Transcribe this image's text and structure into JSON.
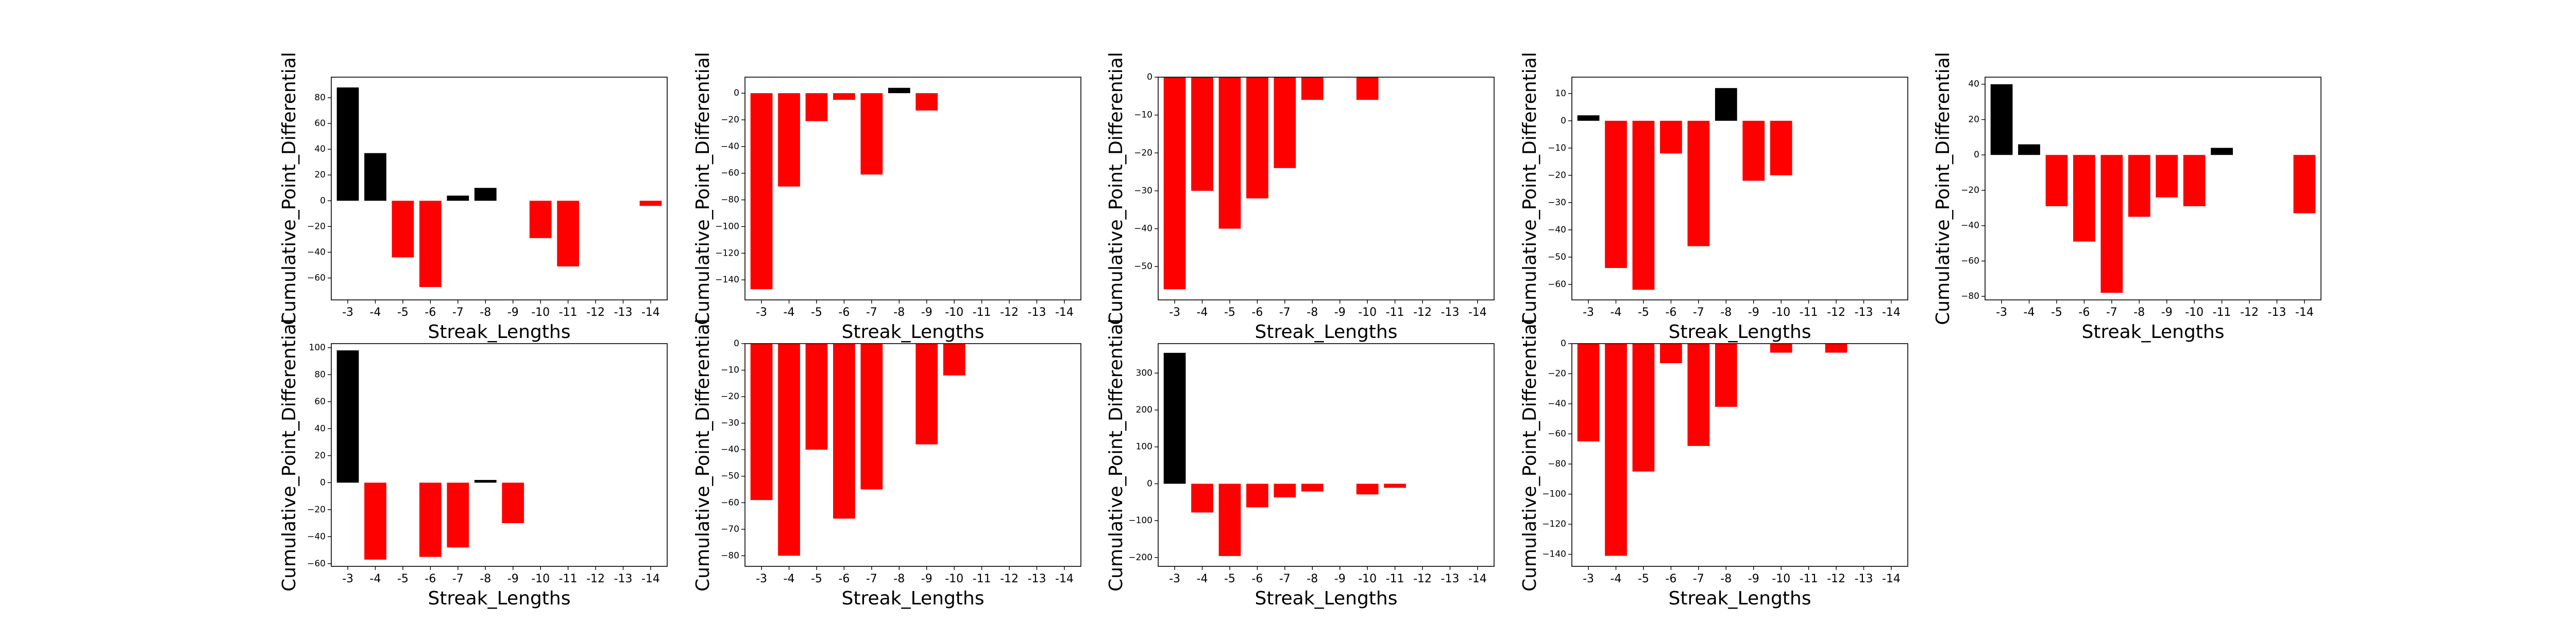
{
  "colors": {
    "positive": "#000000",
    "negative": "#ff0000"
  },
  "chart_data": [
    {
      "type": "bar",
      "xlabel": "Streak_Lengths",
      "ylabel": "Cumulative_Point_Differential",
      "categories": [
        "-3",
        "-4",
        "-5",
        "-6",
        "-7",
        "-8",
        "-9",
        "-10",
        "-11",
        "-12",
        "-13",
        "-14"
      ],
      "values": [
        88,
        37,
        -44,
        -67,
        4,
        10,
        0,
        -29,
        -51,
        0,
        0,
        -4
      ],
      "ylim": [
        -77,
        96
      ],
      "yticks": [
        -60,
        -40,
        -20,
        0,
        20,
        40,
        60,
        80
      ]
    },
    {
      "type": "bar",
      "xlabel": "Streak_Lengths",
      "ylabel": "Cumulative_Point_Differential",
      "categories": [
        "-3",
        "-4",
        "-5",
        "-6",
        "-7",
        "-8",
        "-9",
        "-10",
        "-11",
        "-12",
        "-13",
        "-14"
      ],
      "values": [
        -147,
        -70,
        -21,
        -5,
        -61,
        4,
        -13,
        0,
        0,
        0,
        0,
        0
      ],
      "ylim": [
        -155,
        12
      ],
      "yticks": [
        -140,
        -120,
        -100,
        -80,
        -60,
        -40,
        -20,
        0
      ]
    },
    {
      "type": "bar",
      "xlabel": "Streak_Lengths",
      "ylabel": "Cumulative_Point_Differential",
      "categories": [
        "-3",
        "-4",
        "-5",
        "-6",
        "-7",
        "-8",
        "-9",
        "-10",
        "-11",
        "-12",
        "-13",
        "-14"
      ],
      "values": [
        -56,
        -30,
        -40,
        -32,
        -24,
        -6,
        0,
        -6,
        0,
        0,
        0,
        0
      ],
      "ylim": [
        -58.8,
        0
      ],
      "yticks": [
        -50,
        -40,
        -30,
        -20,
        -10,
        0
      ]
    },
    {
      "type": "bar",
      "xlabel": "Streak_Lengths",
      "ylabel": "Cumulative_Point_Differential",
      "categories": [
        "-3",
        "-4",
        "-5",
        "-6",
        "-7",
        "-8",
        "-9",
        "-10",
        "-11",
        "-12",
        "-13",
        "-14"
      ],
      "values": [
        2,
        -54,
        -62,
        -12,
        -46,
        12,
        -22,
        -20,
        0,
        0,
        0,
        0
      ],
      "ylim": [
        -65.7,
        16
      ],
      "yticks": [
        -60,
        -50,
        -40,
        -30,
        -20,
        -10,
        0,
        10
      ]
    },
    {
      "type": "bar",
      "xlabel": "Streak_Lengths",
      "ylabel": "Cumulative_Point_Differential",
      "categories": [
        "-3",
        "-4",
        "-5",
        "-6",
        "-7",
        "-8",
        "-9",
        "-10",
        "-11",
        "-12",
        "-13",
        "-14"
      ],
      "values": [
        40,
        6,
        -29,
        -49,
        -78,
        -35,
        -24,
        -29,
        4,
        0,
        0,
        -33
      ],
      "ylim": [
        -82,
        44
      ],
      "yticks": [
        -80,
        -60,
        -40,
        -20,
        0,
        20,
        40
      ]
    },
    {
      "type": "bar",
      "xlabel": "Streak_Lengths",
      "ylabel": "Cumulative_Point_Differential",
      "categories": [
        "-3",
        "-4",
        "-5",
        "-6",
        "-7",
        "-8",
        "-9",
        "-10",
        "-11",
        "-12",
        "-13",
        "-14"
      ],
      "values": [
        98,
        -57,
        0,
        -55,
        -48,
        2,
        -30,
        0,
        0,
        0,
        0,
        0
      ],
      "ylim": [
        -62,
        103
      ],
      "yticks": [
        -60,
        -40,
        -20,
        0,
        20,
        40,
        60,
        80,
        100
      ]
    },
    {
      "type": "bar",
      "xlabel": "Streak_Lengths",
      "ylabel": "Cumulative_Point_Differential",
      "categories": [
        "-3",
        "-4",
        "-5",
        "-6",
        "-7",
        "-8",
        "-9",
        "-10",
        "-11",
        "-12",
        "-13",
        "-14"
      ],
      "values": [
        -59,
        -80,
        -40,
        -66,
        -55,
        0,
        -38,
        -12,
        0,
        0,
        0,
        0
      ],
      "ylim": [
        -84,
        0
      ],
      "yticks": [
        -80,
        -70,
        -60,
        -50,
        -40,
        -30,
        -20,
        -10,
        0
      ]
    },
    {
      "type": "bar",
      "xlabel": "Streak_Lengths",
      "ylabel": "Cumulative_Point_Differential",
      "categories": [
        "-3",
        "-4",
        "-5",
        "-6",
        "-7",
        "-8",
        "-9",
        "-10",
        "-11",
        "-12",
        "-13",
        "-14"
      ],
      "values": [
        355,
        -78,
        -196,
        -64,
        -37,
        -21,
        0,
        -29,
        -11,
        0,
        0,
        0
      ],
      "ylim": [
        -224,
        380
      ],
      "yticks": [
        -200,
        -100,
        0,
        100,
        200,
        300
      ]
    },
    {
      "type": "bar",
      "xlabel": "Streak_Lengths",
      "ylabel": "Cumulative_Point_Differential",
      "categories": [
        "-3",
        "-4",
        "-5",
        "-6",
        "-7",
        "-8",
        "-9",
        "-10",
        "-11",
        "-12",
        "-13",
        "-14"
      ],
      "values": [
        -65,
        -141,
        -85,
        -13,
        -68,
        -42,
        0,
        -6,
        0,
        -6,
        0,
        0
      ],
      "ylim": [
        -148,
        0
      ],
      "yticks": [
        -140,
        -120,
        -100,
        -80,
        -60,
        -40,
        -20,
        0
      ]
    }
  ]
}
